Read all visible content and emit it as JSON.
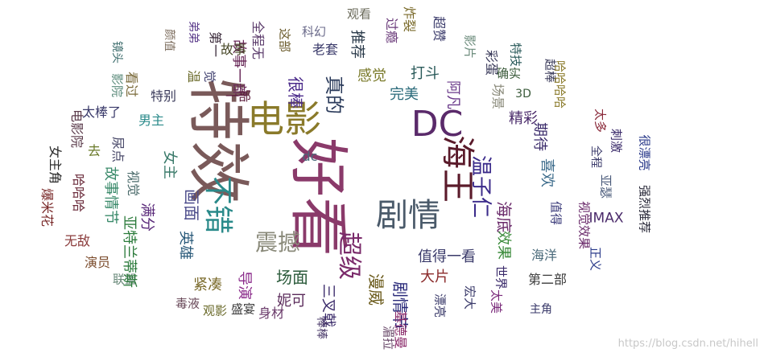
{
  "watermark": "https://blog.csdn.net/hihell",
  "words": [
    {
      "text": "特效",
      "color": "#7a5a5a"
    },
    {
      "text": "好看",
      "color": "#8a3a6a"
    },
    {
      "text": "电影",
      "color": "#8a7a2a"
    },
    {
      "text": "DC",
      "color": "#5a2a6a"
    },
    {
      "text": "海王",
      "color": "#5a1a2a"
    },
    {
      "text": "剧情",
      "color": "#4a5a6a"
    },
    {
      "text": "不错",
      "color": "#2a8a8a"
    },
    {
      "text": "震撼",
      "color": "#8a8a7a"
    },
    {
      "text": "超级",
      "color": "#7a2a6a"
    },
    {
      "text": "温子仁",
      "color": "#3a2a8a"
    },
    {
      "text": "值得一看",
      "color": "#3a3a6a"
    },
    {
      "text": "真的",
      "color": "#2a3a5a"
    },
    {
      "text": "很棒",
      "color": "#4a2a8a"
    },
    {
      "text": "感觉",
      "color": "#7a7a2a"
    },
    {
      "text": "完美",
      "color": "#2a6a7a"
    },
    {
      "text": "打斗",
      "color": "#2a5a5a"
    },
    {
      "text": "阿凡",
      "color": "#6a3a8a"
    },
    {
      "text": "期待",
      "color": "#3a2a6a"
    },
    {
      "text": "喜欢",
      "color": "#3a6a8a"
    },
    {
      "text": "精彩",
      "color": "#4a2a6a"
    },
    {
      "text": "画面",
      "color": "#4a4a8a"
    },
    {
      "text": "场面",
      "color": "#2a5a3a"
    },
    {
      "text": "女主",
      "color": "#3a7a6a"
    },
    {
      "text": "dc",
      "color": "#4a6a7a"
    },
    {
      "text": "海底",
      "color": "#6a2a6a"
    },
    {
      "text": "漫威",
      "color": "#6a5a1a"
    },
    {
      "text": "剧情节",
      "color": "#2a2a7a"
    },
    {
      "text": "三叉戟",
      "color": "#3a2a6a"
    },
    {
      "text": "大片",
      "color": "#8a2a2a"
    },
    {
      "text": "妮可",
      "color": "#5a2a5a"
    },
    {
      "text": "故事一部",
      "color": "#6a2a5a"
    },
    {
      "text": "满分",
      "color": "#5a2a7a"
    },
    {
      "text": "英雄",
      "color": "#2a5a7a"
    },
    {
      "text": "紧凑",
      "color": "#7a6a2a"
    },
    {
      "text": "导演",
      "color": "#8a2a8a"
    },
    {
      "text": "身材",
      "color": "#6a3a6a"
    },
    {
      "text": "男主",
      "color": "#2a8a8a"
    },
    {
      "text": "特别",
      "color": "#3a3a5a"
    },
    {
      "text": "看过",
      "color": "#7a6a3a"
    },
    {
      "text": "太棒了",
      "color": "#3a3a6a"
    },
    {
      "text": "电影院",
      "color": "#5a3a4a"
    },
    {
      "text": "女主角",
      "color": "#2a2a2a"
    },
    {
      "text": "爆米花",
      "color": "#7a2a2a"
    },
    {
      "text": "无敌",
      "color": "#8a3a3a"
    },
    {
      "text": "演员",
      "color": "#7a4a2a"
    },
    {
      "text": "联盟",
      "color": "#6a8a7a"
    },
    {
      "text": "毒液",
      "color": "#6a4a5a"
    },
    {
      "text": "观影",
      "color": "#6a6a2a"
    },
    {
      "text": "盛宴",
      "color": "#3a3a3a"
    },
    {
      "text": "哈哈哈",
      "color": "#6a2a3a"
    },
    {
      "text": "故事情节",
      "color": "#3a8a6a"
    },
    {
      "text": "亚特兰蒂斯",
      "color": "#2a7a3a"
    },
    {
      "text": "视觉",
      "color": "#4a6a6a"
    },
    {
      "text": "尿点",
      "color": "#4a4a6a"
    },
    {
      "text": "去",
      "color": "#6a7a2a"
    },
    {
      "text": "影院",
      "color": "#5a8a7a"
    },
    {
      "text": "镜头",
      "color": "#3a6a6a"
    },
    {
      "text": "颜值",
      "color": "#7a6a5a"
    },
    {
      "text": "弟弟",
      "color": "#5a3a8a"
    },
    {
      "text": "第一",
      "color": "#3a2a3a"
    },
    {
      "text": "温",
      "color": "#6a6a2a"
    },
    {
      "text": "觉",
      "color": "#3a3a6a"
    },
    {
      "text": "故事",
      "color": "#4a4a2a"
    },
    {
      "text": "一部",
      "color": "#5a1a3a"
    },
    {
      "text": "全程无",
      "color": "#5a3a6a"
    },
    {
      "text": "这部",
      "color": "#6a5a2a"
    },
    {
      "text": "科幻",
      "color": "#6a6a8a"
    },
    {
      "text": "老套",
      "color": "#3a3a6a"
    },
    {
      "text": "推荐",
      "color": "#2a3a4a"
    },
    {
      "text": "观看",
      "color": "#6a6a5a"
    },
    {
      "text": "过瘾",
      "color": "#6a3a7a"
    },
    {
      "text": "炸裂",
      "color": "#7a6a2a"
    },
    {
      "text": "超赞",
      "color": "#3a3a6a"
    },
    {
      "text": "影片",
      "color": "#6a8a7a"
    },
    {
      "text": "彩蛋",
      "color": "#3a3a5a"
    },
    {
      "text": "特技",
      "color": "#2a5a5a"
    },
    {
      "text": "确实",
      "color": "#3a5a3a"
    },
    {
      "text": "超棒",
      "color": "#3a3a5a"
    },
    {
      "text": "3D",
      "color": "#3a5a3a"
    },
    {
      "text": "场景",
      "color": "#8a8a7a"
    },
    {
      "text": "哈哈哈哈",
      "color": "#8a7a2a"
    },
    {
      "text": "太多",
      "color": "#8a2a3a"
    },
    {
      "text": "全程",
      "color": "#3a3a6a"
    },
    {
      "text": "刺激",
      "color": "#3a2a6a"
    },
    {
      "text": "很漂亮",
      "color": "#2a3a8a"
    },
    {
      "text": "亚瑟",
      "color": "#4a5a7a"
    },
    {
      "text": "强烈推荐",
      "color": "#2a2a3a"
    },
    {
      "text": "IMAX",
      "color": "#4a2a6a"
    },
    {
      "text": "值得",
      "color": "#3a3a7a"
    },
    {
      "text": "视觉效果",
      "color": "#6a2a6a"
    },
    {
      "text": "正义",
      "color": "#2a3a8a"
    },
    {
      "text": "效果",
      "color": "#3a8a3a"
    },
    {
      "text": "海洋",
      "color": "#4a6a7a"
    },
    {
      "text": "世界",
      "color": "#3a2a6a"
    },
    {
      "text": "第二部",
      "color": "#3a3a3a"
    },
    {
      "text": "宏大",
      "color": "#3a3a6a"
    },
    {
      "text": "太美",
      "color": "#7a2a7a"
    },
    {
      "text": "主角",
      "color": "#3a3a6a"
    },
    {
      "text": "漂亮",
      "color": "#3a3a6a"
    },
    {
      "text": "基德曼",
      "color": "#8a2a6a"
    },
    {
      "text": "湄拉",
      "color": "#6a4a6a"
    },
    {
      "text": "棒棒",
      "color": "#4a3a6a"
    }
  ]
}
